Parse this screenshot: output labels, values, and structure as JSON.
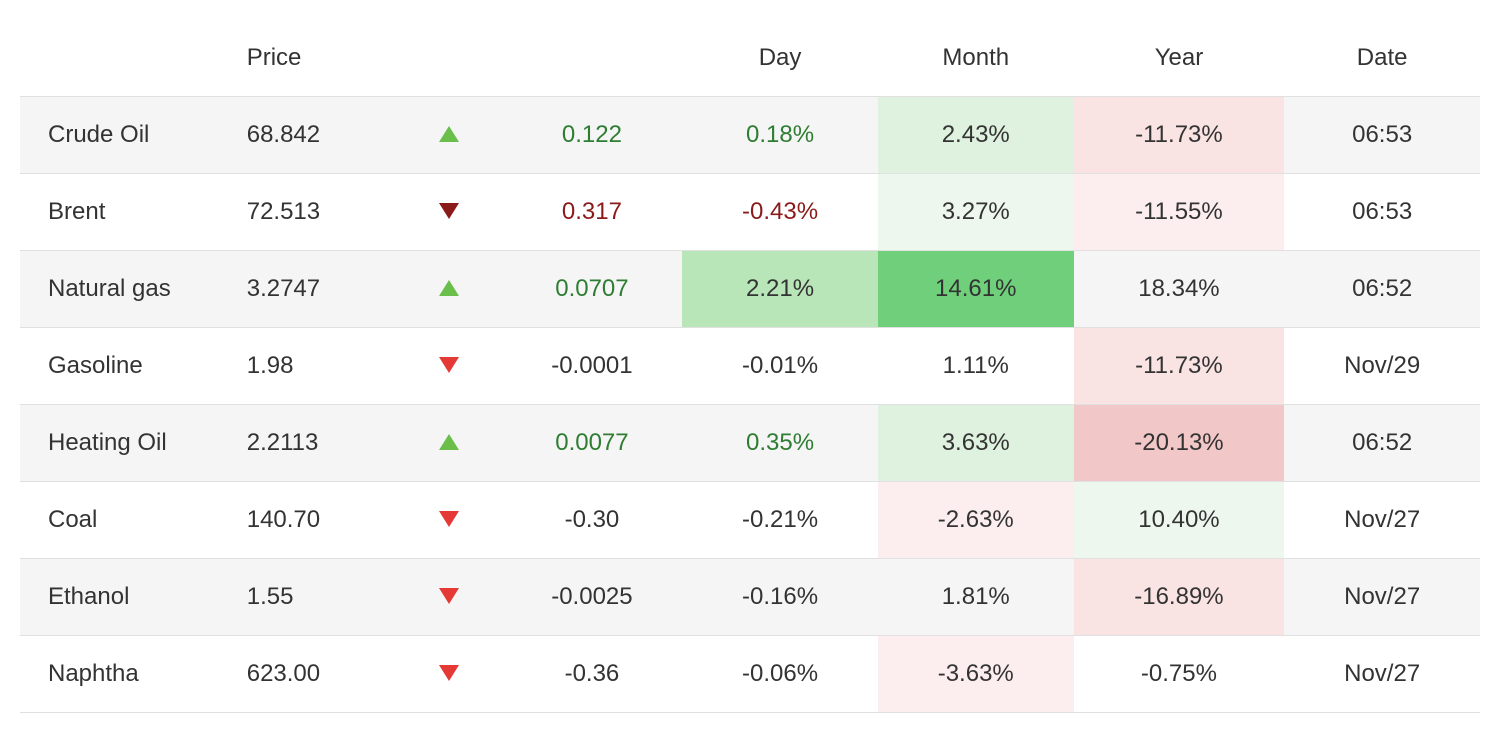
{
  "colors": {
    "text_default": "#333333",
    "text_green_dark": "#2e7d32",
    "text_red_dark": "#8b1a1a",
    "arrow_up_green": "#6abf4b",
    "arrow_down_red": "#e53935",
    "arrow_down_dark_red": "#8b1a1a",
    "heat_green_strong": "#6fcf7a",
    "heat_green_med": "#b8e6b8",
    "heat_green_light": "#dff2df",
    "heat_green_faint": "#eef7ee",
    "heat_red_med": "#f2c7c7",
    "heat_red_light": "#f9e3e3",
    "heat_red_faint": "#fceeee",
    "row_alt": "#f5f5f5",
    "row_base": "#ffffff",
    "border": "#e0e0e0"
  },
  "table": {
    "columns": [
      "",
      "Price",
      "",
      "",
      "Day",
      "Month",
      "Year",
      "Date"
    ],
    "rows": [
      {
        "name": "Crude Oil",
        "price": "68.842",
        "direction": "up",
        "arrow_color": "#6abf4b",
        "change": "0.122",
        "change_color": "#2e7d32",
        "day": "0.18%",
        "day_color": "#2e7d32",
        "day_bg": null,
        "month": "2.43%",
        "month_color": "#333333",
        "month_bg": "#dff2df",
        "year": "-11.73%",
        "year_color": "#333333",
        "year_bg": "#f9e3e3",
        "date": "06:53"
      },
      {
        "name": "Brent",
        "price": "72.513",
        "direction": "down",
        "arrow_color": "#8b1a1a",
        "change": "0.317",
        "change_color": "#8b1a1a",
        "day": "-0.43%",
        "day_color": "#8b1a1a",
        "day_bg": null,
        "month": "3.27%",
        "month_color": "#333333",
        "month_bg": "#eef7ee",
        "year": "-11.55%",
        "year_color": "#333333",
        "year_bg": "#fceeee",
        "date": "06:53"
      },
      {
        "name": "Natural gas",
        "price": "3.2747",
        "direction": "up",
        "arrow_color": "#6abf4b",
        "change": "0.0707",
        "change_color": "#2e7d32",
        "day": "2.21%",
        "day_color": "#333333",
        "day_bg": "#b8e6b8",
        "month": "14.61%",
        "month_color": "#333333",
        "month_bg": "#6fcf7a",
        "year": "18.34%",
        "year_color": "#333333",
        "year_bg": null,
        "date": "06:52"
      },
      {
        "name": "Gasoline",
        "price": "1.98",
        "direction": "down",
        "arrow_color": "#e53935",
        "change": "-0.0001",
        "change_color": "#333333",
        "day": "-0.01%",
        "day_color": "#333333",
        "day_bg": null,
        "month": "1.11%",
        "month_color": "#333333",
        "month_bg": null,
        "year": "-11.73%",
        "year_color": "#333333",
        "year_bg": "#f9e3e3",
        "date": "Nov/29"
      },
      {
        "name": "Heating Oil",
        "price": "2.2113",
        "direction": "up",
        "arrow_color": "#6abf4b",
        "change": "0.0077",
        "change_color": "#2e7d32",
        "day": "0.35%",
        "day_color": "#2e7d32",
        "day_bg": null,
        "month": "3.63%",
        "month_color": "#333333",
        "month_bg": "#dff2df",
        "year": "-20.13%",
        "year_color": "#333333",
        "year_bg": "#f2c7c7",
        "date": "06:52"
      },
      {
        "name": "Coal",
        "price": "140.70",
        "direction": "down",
        "arrow_color": "#e53935",
        "change": "-0.30",
        "change_color": "#333333",
        "day": "-0.21%",
        "day_color": "#333333",
        "day_bg": null,
        "month": "-2.63%",
        "month_color": "#333333",
        "month_bg": "#fceeee",
        "year": "10.40%",
        "year_color": "#333333",
        "year_bg": "#eef7ee",
        "date": "Nov/27"
      },
      {
        "name": "Ethanol",
        "price": "1.55",
        "direction": "down",
        "arrow_color": "#e53935",
        "change": "-0.0025",
        "change_color": "#333333",
        "day": "-0.16%",
        "day_color": "#333333",
        "day_bg": null,
        "month": "1.81%",
        "month_color": "#333333",
        "month_bg": null,
        "year": "-16.89%",
        "year_color": "#333333",
        "year_bg": "#f9e3e3",
        "date": "Nov/27"
      },
      {
        "name": "Naphtha",
        "price": "623.00",
        "direction": "down",
        "arrow_color": "#e53935",
        "change": "-0.36",
        "change_color": "#333333",
        "day": "-0.06%",
        "day_color": "#333333",
        "day_bg": null,
        "month": "-3.63%",
        "month_color": "#333333",
        "month_bg": "#fceeee",
        "year": "-0.75%",
        "year_color": "#333333",
        "year_bg": null,
        "date": "Nov/27"
      }
    ]
  }
}
